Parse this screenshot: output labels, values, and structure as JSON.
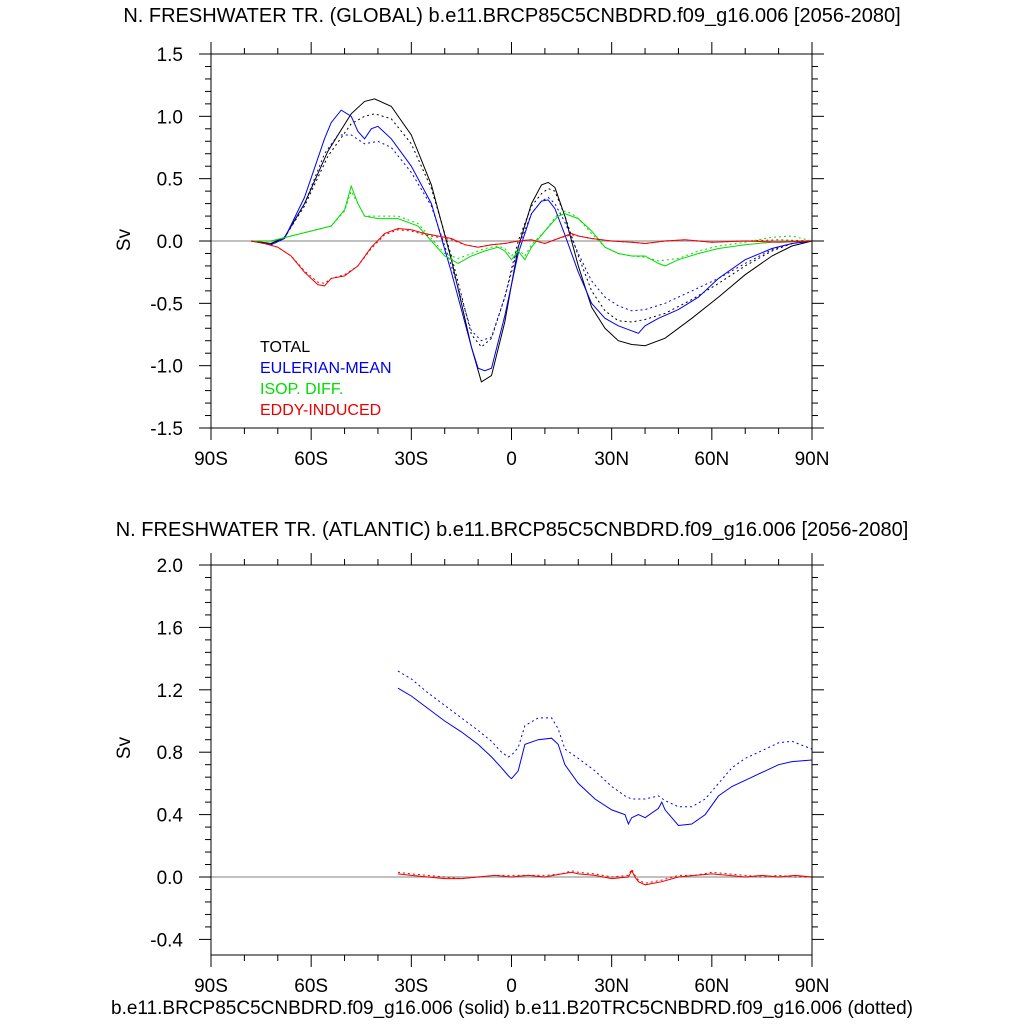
{
  "footer": "b.e11.BRCP85C5CNBDRD.f09_g16.006 (solid) b.e11.B20TRC5CNBDRD.f09_g16.006 (dotted)",
  "colors": {
    "total": "#000000",
    "eulerian": "#0000ee",
    "isop": "#00dd00",
    "eddy": "#ee0000"
  },
  "chart_data": [
    {
      "type": "line",
      "title": "N. FRESHWATER TR. (GLOBAL) b.e11.BRCP85C5CNBDRD.f09_g16.006 [2056-2080]",
      "ylabel": "Sv",
      "xlim": [
        -90,
        90
      ],
      "ylim": [
        -1.5,
        1.5
      ],
      "xticks": [
        -90,
        -60,
        -30,
        0,
        30,
        60,
        90
      ],
      "xticklabels": [
        "90S",
        "60S",
        "30S",
        "0",
        "30N",
        "60N",
        "90N"
      ],
      "yticks": [
        -1.5,
        -1.0,
        -0.5,
        0.0,
        0.5,
        1.0,
        1.5
      ],
      "yticklabels": [
        "-1.5",
        "-1.0",
        "-0.5",
        "0.0",
        "0.5",
        "1.0",
        "1.5"
      ],
      "legend": [
        "TOTAL",
        "EULERIAN-MEAN",
        "ISOP. DIFF.",
        "EDDY-INDUCED"
      ],
      "series": [
        {
          "key": "total",
          "style": "solid",
          "x": [
            -78,
            -72,
            -68,
            -62,
            -55,
            -48,
            -44,
            -41,
            -36,
            -30,
            -24,
            -18,
            -12,
            -9,
            -6,
            -2,
            2,
            6,
            9,
            11,
            13,
            16,
            20,
            24,
            28,
            32,
            36,
            40,
            46,
            54,
            62,
            70,
            78,
            84,
            90
          ],
          "y": [
            0,
            -0.02,
            0.03,
            0.3,
            0.72,
            1.02,
            1.12,
            1.14,
            1.08,
            0.85,
            0.45,
            -0.15,
            -0.85,
            -1.13,
            -1.08,
            -0.65,
            -0.05,
            0.3,
            0.45,
            0.47,
            0.43,
            0.2,
            -0.2,
            -0.53,
            -0.7,
            -0.8,
            -0.83,
            -0.84,
            -0.78,
            -0.62,
            -0.45,
            -0.27,
            -0.12,
            -0.04,
            0
          ]
        },
        {
          "key": "total",
          "style": "dotted",
          "x": [
            -78,
            -72,
            -68,
            -62,
            -55,
            -48,
            -44,
            -41,
            -36,
            -30,
            -24,
            -18,
            -12,
            -9,
            -6,
            -2,
            2,
            6,
            9,
            11,
            13,
            16,
            20,
            24,
            28,
            32,
            36,
            40,
            46,
            54,
            62,
            70,
            78,
            84,
            90
          ],
          "y": [
            0,
            -0.02,
            0.03,
            0.28,
            0.68,
            0.94,
            1.0,
            1.02,
            0.98,
            0.78,
            0.42,
            -0.12,
            -0.75,
            -0.85,
            -0.78,
            -0.45,
            0,
            0.28,
            0.38,
            0.42,
            0.4,
            0.2,
            -0.12,
            -0.4,
            -0.56,
            -0.64,
            -0.65,
            -0.63,
            -0.58,
            -0.47,
            -0.34,
            -0.2,
            -0.08,
            -0.02,
            0
          ]
        },
        {
          "key": "eulerian",
          "style": "solid",
          "x": [
            -78,
            -72,
            -68,
            -62,
            -56,
            -54,
            -51,
            -48,
            -46,
            -44,
            -42,
            -40,
            -36,
            -30,
            -24,
            -18,
            -12,
            -10,
            -8,
            -6,
            -2,
            2,
            6,
            9,
            11,
            13,
            16,
            20,
            24,
            28,
            32,
            36,
            38,
            40,
            44,
            50,
            56,
            62,
            70,
            78,
            84,
            90
          ],
          "y": [
            0,
            -0.03,
            0.02,
            0.35,
            0.82,
            0.95,
            1.05,
            1.0,
            0.88,
            0.82,
            0.9,
            0.92,
            0.82,
            0.6,
            0.3,
            -0.25,
            -0.85,
            -1.02,
            -1.04,
            -1.02,
            -0.6,
            -0.1,
            0.22,
            0.32,
            0.33,
            0.26,
            0.05,
            -0.25,
            -0.5,
            -0.62,
            -0.68,
            -0.72,
            -0.74,
            -0.68,
            -0.62,
            -0.55,
            -0.45,
            -0.3,
            -0.15,
            -0.06,
            -0.02,
            0
          ]
        },
        {
          "key": "eulerian",
          "style": "dotted",
          "x": [
            -78,
            -72,
            -68,
            -62,
            -56,
            -52,
            -48,
            -44,
            -40,
            -36,
            -30,
            -24,
            -18,
            -12,
            -9,
            -6,
            -2,
            2,
            6,
            9,
            11,
            13,
            16,
            20,
            24,
            28,
            32,
            36,
            40,
            46,
            54,
            62,
            70,
            78,
            84,
            90
          ],
          "y": [
            0,
            -0.03,
            0.02,
            0.3,
            0.7,
            0.85,
            0.85,
            0.78,
            0.8,
            0.75,
            0.55,
            0.28,
            -0.2,
            -0.72,
            -0.8,
            -0.77,
            -0.45,
            -0.05,
            0.22,
            0.32,
            0.35,
            0.3,
            0.15,
            -0.1,
            -0.32,
            -0.45,
            -0.52,
            -0.56,
            -0.55,
            -0.5,
            -0.4,
            -0.3,
            -0.18,
            -0.07,
            -0.02,
            0
          ]
        },
        {
          "key": "isop",
          "style": "solid",
          "x": [
            -78,
            -72,
            -66,
            -60,
            -54,
            -50,
            -48,
            -46,
            -44,
            -40,
            -34,
            -28,
            -24,
            -20,
            -16,
            -12,
            -8,
            -4,
            -2,
            0,
            2,
            4,
            6,
            10,
            14,
            16,
            18,
            20,
            24,
            28,
            32,
            36,
            40,
            42,
            44,
            46,
            50,
            56,
            62,
            70,
            78,
            84,
            90
          ],
          "y": [
            0,
            0,
            0.04,
            0.08,
            0.12,
            0.25,
            0.44,
            0.3,
            0.2,
            0.18,
            0.18,
            0.12,
            0,
            -0.12,
            -0.18,
            -0.12,
            -0.08,
            -0.05,
            -0.08,
            -0.15,
            -0.08,
            -0.15,
            -0.05,
            0.08,
            0.2,
            0.22,
            0.2,
            0.18,
            0.08,
            -0.05,
            -0.1,
            -0.12,
            -0.12,
            -0.15,
            -0.18,
            -0.2,
            -0.15,
            -0.1,
            -0.06,
            -0.03,
            -0.01,
            0,
            0
          ]
        },
        {
          "key": "isop",
          "style": "dotted",
          "x": [
            -78,
            -72,
            -66,
            -60,
            -54,
            -50,
            -48,
            -46,
            -44,
            -40,
            -34,
            -28,
            -24,
            -20,
            -16,
            -12,
            -8,
            -4,
            -2,
            0,
            2,
            4,
            6,
            10,
            14,
            16,
            18,
            20,
            24,
            28,
            32,
            36,
            40,
            44,
            50,
            56,
            62,
            70,
            78,
            84,
            90
          ],
          "y": [
            0,
            0,
            0.04,
            0.08,
            0.12,
            0.24,
            0.4,
            0.3,
            0.2,
            0.2,
            0.2,
            0.14,
            0.02,
            -0.1,
            -0.14,
            -0.1,
            -0.06,
            -0.04,
            -0.06,
            -0.12,
            -0.06,
            -0.12,
            -0.03,
            0.08,
            0.22,
            0.24,
            0.22,
            0.18,
            0.06,
            -0.05,
            -0.1,
            -0.12,
            -0.13,
            -0.16,
            -0.14,
            -0.08,
            -0.04,
            -0.01,
            0.03,
            0.04,
            0
          ]
        },
        {
          "key": "eddy",
          "style": "solid",
          "x": [
            -78,
            -74,
            -70,
            -66,
            -62,
            -58,
            -56,
            -54,
            -50,
            -46,
            -42,
            -38,
            -34,
            -30,
            -26,
            -22,
            -18,
            -14,
            -10,
            -6,
            -2,
            2,
            6,
            10,
            14,
            18,
            20,
            24,
            30,
            36,
            40,
            46,
            52,
            60,
            70,
            80,
            90
          ],
          "y": [
            0,
            -0.02,
            -0.05,
            -0.12,
            -0.25,
            -0.35,
            -0.36,
            -0.3,
            -0.28,
            -0.2,
            -0.05,
            0.06,
            0.1,
            0.09,
            0.06,
            0.04,
            0.02,
            -0.03,
            -0.05,
            -0.03,
            -0.02,
            0,
            0.01,
            -0.02,
            0.02,
            0.06,
            0.04,
            0.02,
            0,
            -0.01,
            -0.02,
            0,
            0.01,
            -0.01,
            0,
            -0.01,
            0
          ]
        },
        {
          "key": "eddy",
          "style": "dotted",
          "x": [
            -78,
            -74,
            -70,
            -66,
            -62,
            -58,
            -56,
            -54,
            -50,
            -46,
            -42,
            -38,
            -34,
            -30,
            -26,
            -22,
            -18,
            -14,
            -10,
            -6,
            -2,
            2,
            6,
            10,
            14,
            18,
            20,
            24,
            30,
            36,
            40,
            46,
            52,
            60,
            70,
            80,
            90
          ],
          "y": [
            0,
            -0.02,
            -0.05,
            -0.12,
            -0.24,
            -0.33,
            -0.34,
            -0.3,
            -0.27,
            -0.2,
            -0.06,
            0.05,
            0.09,
            0.08,
            0.05,
            0.03,
            0.01,
            -0.03,
            -0.05,
            -0.03,
            -0.02,
            0,
            0.01,
            -0.02,
            0.02,
            0.05,
            0.04,
            0.02,
            0,
            -0.01,
            -0.02,
            0,
            0.01,
            -0.01,
            0,
            0.01,
            0
          ]
        }
      ]
    },
    {
      "type": "line",
      "title": "N. FRESHWATER TR. (ATLANTIC) b.e11.BRCP85C5CNBDRD.f09_g16.006 [2056-2080]",
      "ylabel": "Sv",
      "xlim": [
        -90,
        90
      ],
      "ylim": [
        -0.5,
        2.0
      ],
      "xticks": [
        -90,
        -60,
        -30,
        0,
        30,
        60,
        90
      ],
      "xticklabels": [
        "90S",
        "60S",
        "30S",
        "0",
        "30N",
        "60N",
        "90N"
      ],
      "yticks": [
        -0.4,
        0.0,
        0.4,
        0.8,
        1.2,
        1.6,
        2.0
      ],
      "yticklabels": [
        "-0.4",
        "0.0",
        "0.4",
        "0.8",
        "1.2",
        "1.6",
        "2.0"
      ],
      "series": [
        {
          "key": "eulerian",
          "style": "solid",
          "x": [
            -34,
            -30,
            -25,
            -20,
            -15,
            -10,
            -6,
            -3,
            -1,
            0,
            2,
            4,
            8,
            12,
            14,
            16,
            20,
            25,
            30,
            34,
            35,
            36,
            38,
            40,
            44,
            45,
            46,
            48,
            50,
            54,
            58,
            62,
            66,
            70,
            76,
            80,
            84,
            90
          ],
          "y": [
            1.21,
            1.16,
            1.08,
            1.0,
            0.93,
            0.85,
            0.77,
            0.7,
            0.65,
            0.63,
            0.68,
            0.85,
            0.88,
            0.89,
            0.85,
            0.72,
            0.6,
            0.5,
            0.43,
            0.4,
            0.34,
            0.38,
            0.4,
            0.38,
            0.44,
            0.48,
            0.43,
            0.38,
            0.33,
            0.34,
            0.4,
            0.52,
            0.58,
            0.62,
            0.68,
            0.72,
            0.74,
            0.75
          ]
        },
        {
          "key": "eulerian",
          "style": "dotted",
          "x": [
            -34,
            -30,
            -25,
            -20,
            -15,
            -10,
            -6,
            -3,
            -1,
            0,
            2,
            4,
            8,
            12,
            14,
            16,
            20,
            25,
            30,
            34,
            36,
            40,
            44,
            46,
            50,
            54,
            58,
            62,
            66,
            70,
            76,
            80,
            84,
            90
          ],
          "y": [
            1.32,
            1.27,
            1.18,
            1.1,
            1.02,
            0.94,
            0.87,
            0.8,
            0.77,
            0.78,
            0.83,
            0.97,
            1.02,
            1.02,
            0.95,
            0.82,
            0.76,
            0.68,
            0.58,
            0.52,
            0.5,
            0.5,
            0.52,
            0.49,
            0.45,
            0.45,
            0.5,
            0.6,
            0.7,
            0.76,
            0.82,
            0.86,
            0.87,
            0.82
          ]
        },
        {
          "key": "eddy",
          "style": "solid",
          "x": [
            -34,
            -30,
            -25,
            -20,
            -15,
            -10,
            -5,
            0,
            5,
            10,
            15,
            18,
            20,
            25,
            30,
            35,
            36,
            37,
            38,
            40,
            45,
            50,
            55,
            60,
            65,
            70,
            75,
            80,
            85,
            90
          ],
          "y": [
            0.02,
            0.01,
            0,
            -0.01,
            -0.01,
            0,
            0.01,
            0,
            0.01,
            0,
            0.02,
            0.03,
            0.02,
            0.01,
            -0.01,
            0,
            0.04,
            0,
            -0.03,
            -0.05,
            -0.03,
            0,
            0.01,
            0.02,
            0.01,
            0,
            0.01,
            0,
            0.01,
            0
          ]
        },
        {
          "key": "eddy",
          "style": "dotted",
          "x": [
            -34,
            -30,
            -25,
            -20,
            -15,
            -10,
            -5,
            0,
            5,
            10,
            15,
            18,
            20,
            25,
            30,
            35,
            36,
            37,
            38,
            40,
            45,
            50,
            55,
            60,
            65,
            70,
            75,
            80,
            85,
            90
          ],
          "y": [
            0.03,
            0.02,
            0.01,
            0,
            -0.01,
            0,
            0.01,
            0.01,
            0.01,
            0.01,
            0.02,
            0.04,
            0.03,
            0.02,
            0,
            0.01,
            0.05,
            0.01,
            -0.02,
            -0.04,
            -0.02,
            0.01,
            0.01,
            0.03,
            0.02,
            0.01,
            0,
            0.01,
            0,
            0
          ]
        }
      ]
    }
  ]
}
